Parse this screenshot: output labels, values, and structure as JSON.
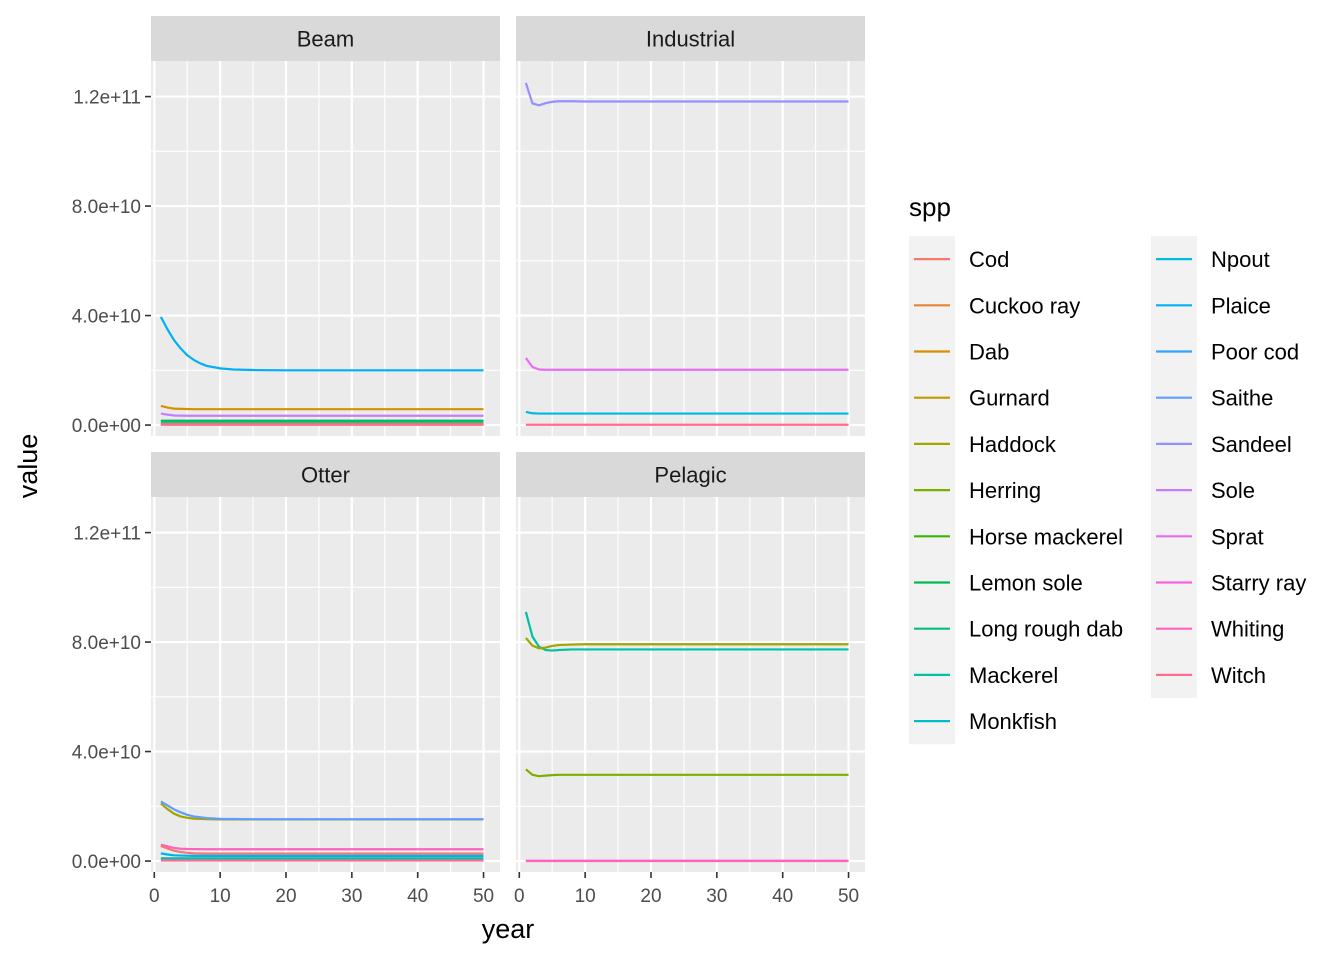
{
  "chart_data": {
    "type": "line",
    "xlabel": "year",
    "ylabel": "value",
    "xlim": [
      -0.5,
      52.5
    ],
    "ylim": [
      -4000000000,
      133000000000
    ],
    "x_ticks": [
      0,
      10,
      20,
      30,
      40,
      50
    ],
    "x_tick_labels": [
      "0",
      "10",
      "20",
      "30",
      "40",
      "50"
    ],
    "y_ticks": [
      0,
      40000000000,
      80000000000,
      120000000000
    ],
    "y_tick_labels": [
      "0.0e+00",
      "4.0e+10",
      "8.0e+10",
      "1.2e+11"
    ],
    "grid": true,
    "facet_layout": [
      2,
      2
    ],
    "legend": {
      "title": "spp",
      "position": "right",
      "columns": 2,
      "entries": [
        {
          "name": "Cod",
          "color": "#F8766D"
        },
        {
          "name": "Cuckoo ray",
          "color": "#EA8331"
        },
        {
          "name": "Dab",
          "color": "#D89000"
        },
        {
          "name": "Gurnard",
          "color": "#C09B00"
        },
        {
          "name": "Haddock",
          "color": "#A3A500"
        },
        {
          "name": "Herring",
          "color": "#7CAE00"
        },
        {
          "name": "Horse mackerel",
          "color": "#39B600"
        },
        {
          "name": "Lemon sole",
          "color": "#00BB4E"
        },
        {
          "name": "Long rough dab",
          "color": "#00BF7D"
        },
        {
          "name": "Mackerel",
          "color": "#00C1A3"
        },
        {
          "name": "Monkfish",
          "color": "#00BFC4"
        },
        {
          "name": "Npout",
          "color": "#00BAE0"
        },
        {
          "name": "Plaice",
          "color": "#00B0F6"
        },
        {
          "name": "Poor cod",
          "color": "#35A2FF"
        },
        {
          "name": "Saithe",
          "color": "#619CFF"
        },
        {
          "name": "Sandeel",
          "color": "#9590FF"
        },
        {
          "name": "Sole",
          "color": "#C77CFF"
        },
        {
          "name": "Sprat",
          "color": "#E76BF3"
        },
        {
          "name": "Starry ray",
          "color": "#FA62DB"
        },
        {
          "name": "Whiting",
          "color": "#FF62BC"
        },
        {
          "name": "Witch",
          "color": "#FF6C91"
        }
      ]
    },
    "panels": [
      {
        "label": "Beam",
        "series": [
          {
            "name": "Plaice",
            "x": [
              1,
              2,
              3,
              4,
              5,
              6,
              7,
              8,
              10,
              12,
              15,
              20,
              30,
              40,
              50
            ],
            "values": [
              39500000000,
              35000000000,
              31000000000,
              28000000000,
              25500000000,
              23800000000,
              22500000000,
              21600000000,
              20700000000,
              20300000000,
              20100000000,
              20000000000,
              20000000000,
              20000000000,
              20000000000
            ]
          },
          {
            "name": "Dab",
            "x": [
              1,
              2,
              3,
              4,
              6,
              10,
              20,
              50
            ],
            "values": [
              7000000000,
              6400000000,
              6000000000,
              5900000000,
              5800000000,
              5800000000,
              5800000000,
              5800000000
            ]
          },
          {
            "name": "Sole",
            "x": [
              1,
              2,
              3,
              5,
              10,
              50
            ],
            "values": [
              4200000000,
              3800000000,
              3500000000,
              3400000000,
              3400000000,
              3400000000
            ]
          },
          {
            "name": "Lemon sole",
            "x": [
              1,
              50
            ],
            "values": [
              1600000000,
              1600000000
            ]
          },
          {
            "name": "Long rough dab",
            "x": [
              1,
              50
            ],
            "values": [
              1200000000,
              1200000000
            ]
          },
          {
            "name": "Cod",
            "x": [
              1,
              50
            ],
            "values": [
              300000000,
              300000000
            ]
          },
          {
            "name": "Gurnard",
            "x": [
              1,
              50
            ],
            "values": [
              400000000,
              400000000
            ]
          },
          {
            "name": "Whiting",
            "x": [
              1,
              50
            ],
            "values": [
              200000000,
              200000000
            ]
          },
          {
            "name": "Witch",
            "x": [
              1,
              50
            ],
            "values": [
              100000000,
              100000000
            ]
          }
        ]
      },
      {
        "label": "Industrial",
        "series": [
          {
            "name": "Sandeel",
            "x": [
              1,
              2,
              3,
              4,
              5,
              6,
              8,
              10,
              20,
              50
            ],
            "values": [
              125000000000,
              117500000000,
              116800000000,
              117600000000,
              118100000000,
              118300000000,
              118300000000,
              118200000000,
              118200000000,
              118200000000
            ]
          },
          {
            "name": "Sprat",
            "x": [
              1,
              2,
              3,
              4,
              6,
              10,
              50
            ],
            "values": [
              24500000000,
              21200000000,
              20300000000,
              20200000000,
              20200000000,
              20200000000,
              20200000000
            ]
          },
          {
            "name": "Npout",
            "x": [
              1,
              2,
              3,
              5,
              10,
              50
            ],
            "values": [
              4800000000,
              4300000000,
              4200000000,
              4200000000,
              4200000000,
              4200000000
            ]
          },
          {
            "name": "Witch",
            "x": [
              1,
              50
            ],
            "values": [
              100000000,
              100000000
            ]
          }
        ]
      },
      {
        "label": "Otter",
        "series": [
          {
            "name": "Haddock",
            "x": [
              1,
              2,
              3,
              4,
              5,
              6,
              8,
              10,
              15,
              20,
              50
            ],
            "values": [
              21000000000,
              19000000000,
              17300000000,
              16300000000,
              15800000000,
              15500000000,
              15300000000,
              15200000000,
              15200000000,
              15200000000,
              15200000000
            ]
          },
          {
            "name": "Saithe",
            "x": [
              1,
              2,
              3,
              4,
              5,
              6,
              8,
              10,
              15,
              20,
              50
            ],
            "values": [
              21800000000,
              20300000000,
              18900000000,
              17800000000,
              16900000000,
              16300000000,
              15700000000,
              15400000000,
              15300000000,
              15300000000,
              15300000000
            ]
          },
          {
            "name": "Whiting",
            "x": [
              1,
              2,
              3,
              4,
              5,
              8,
              10,
              20,
              50
            ],
            "values": [
              6000000000,
              5400000000,
              4800000000,
              4500000000,
              4400000000,
              4300000000,
              4300000000,
              4300000000,
              4300000000
            ]
          },
          {
            "name": "Cod",
            "x": [
              1,
              2,
              3,
              4,
              5,
              6,
              8,
              10,
              20,
              50
            ],
            "values": [
              5500000000,
              4600000000,
              3800000000,
              3300000000,
              3000000000,
              2800000000,
              2700000000,
              2700000000,
              2700000000,
              2700000000
            ]
          },
          {
            "name": "Plaice",
            "x": [
              1,
              2,
              3,
              4,
              6,
              10,
              50
            ],
            "values": [
              2800000000,
              2400000000,
              2100000000,
              2000000000,
              1900000000,
              1900000000,
              1900000000
            ]
          },
          {
            "name": "Long rough dab",
            "x": [
              1,
              50
            ],
            "values": [
              1000000000,
              1000000000
            ]
          },
          {
            "name": "Monkfish",
            "x": [
              1,
              50
            ],
            "values": [
              600000000,
              600000000
            ]
          },
          {
            "name": "Witch",
            "x": [
              1,
              50
            ],
            "values": [
              200000000,
              200000000
            ]
          }
        ]
      },
      {
        "label": "Pelagic",
        "series": [
          {
            "name": "Mackerel",
            "x": [
              1,
              2,
              3,
              4,
              5,
              6,
              8,
              10,
              20,
              50
            ],
            "values": [
              91000000000,
              82000000000,
              78300000000,
              77100000000,
              76900000000,
              77100000000,
              77300000000,
              77300000000,
              77300000000,
              77300000000
            ]
          },
          {
            "name": "Haddock",
            "x": [
              1,
              2,
              3,
              4,
              5,
              6,
              8,
              10,
              20,
              50
            ],
            "values": [
              81500000000,
              78700000000,
              77700000000,
              78000000000,
              78600000000,
              78900000000,
              79100000000,
              79200000000,
              79200000000,
              79200000000
            ]
          },
          {
            "name": "Herring",
            "x": [
              1,
              2,
              3,
              4,
              5,
              6,
              8,
              10,
              20,
              50
            ],
            "values": [
              33500000000,
              31500000000,
              31000000000,
              31200000000,
              31400000000,
              31500000000,
              31500000000,
              31500000000,
              31500000000,
              31500000000
            ]
          },
          {
            "name": "Starry ray",
            "x": [
              1,
              50
            ],
            "values": [
              100000000,
              100000000
            ]
          },
          {
            "name": "Whiting",
            "x": [
              1,
              50
            ],
            "values": [
              0,
              0
            ]
          }
        ]
      }
    ]
  }
}
